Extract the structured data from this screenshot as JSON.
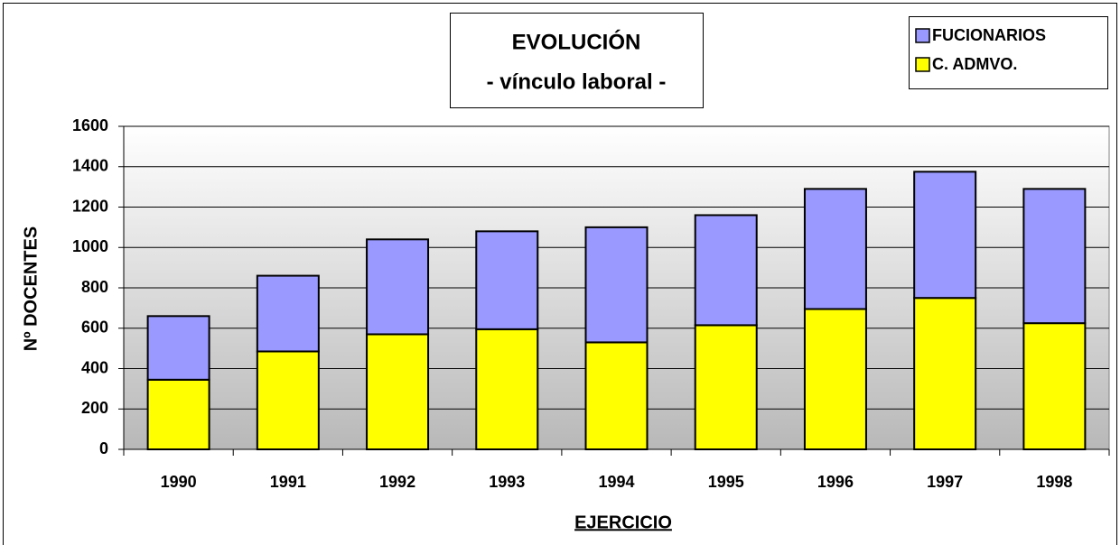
{
  "chart_data": {
    "type": "stacked_bar",
    "title": "EVOLUCIÓN",
    "subtitle": "- vínculo laboral -",
    "x_label": "EJERCICIO",
    "y_label": "Nº DOCENTES",
    "categories": [
      "1990",
      "1991",
      "1992",
      "1993",
      "1994",
      "1995",
      "1996",
      "1997",
      "1998"
    ],
    "series": [
      {
        "name": "C. ADMVO.",
        "color": "#ffff00",
        "values": [
          345,
          485,
          570,
          595,
          530,
          615,
          695,
          750,
          625
        ]
      },
      {
        "name": "FUCIONARIOS",
        "color": "#9999ff",
        "values": [
          315,
          375,
          470,
          485,
          570,
          545,
          595,
          625,
          665
        ]
      }
    ],
    "ylim": [
      0,
      1600
    ],
    "yticks": [
      0,
      200,
      400,
      600,
      800,
      1000,
      1200,
      1400,
      1600
    ],
    "grid": true,
    "legend": "top-right"
  }
}
